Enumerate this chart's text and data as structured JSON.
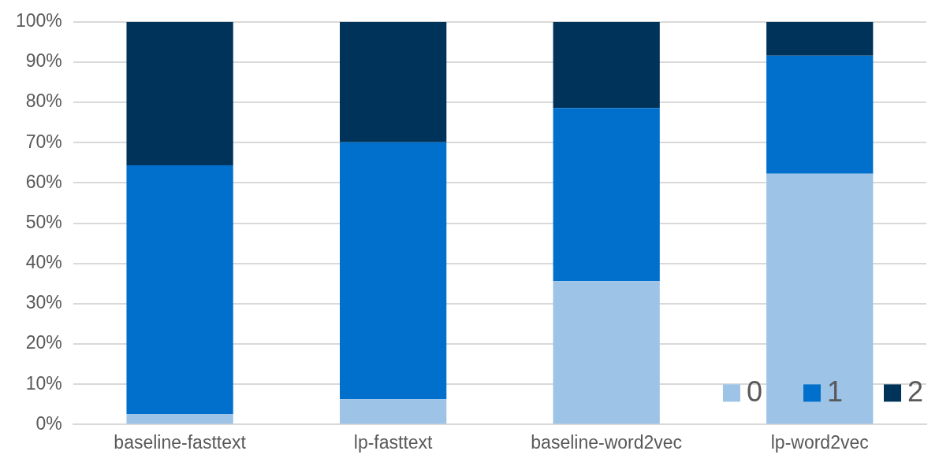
{
  "chart_data": {
    "type": "bar",
    "stacked": true,
    "categories": [
      "baseline-fasttext",
      "lp-fasttext",
      "baseline-word2vec",
      "lp-word2vec"
    ],
    "series": [
      {
        "name": "0",
        "color": "#9dc3e6",
        "values": [
          2.6,
          6.3,
          35.6,
          62.3
        ]
      },
      {
        "name": "1",
        "color": "#0070cc",
        "values": [
          61.8,
          63.8,
          43.0,
          29.3
        ]
      },
      {
        "name": "2",
        "color": "#003359",
        "values": [
          35.6,
          29.9,
          21.4,
          8.4
        ]
      }
    ],
    "ylim": [
      0,
      100
    ],
    "yticks": [
      {
        "value": 0,
        "label": "0%"
      },
      {
        "value": 10,
        "label": "10%"
      },
      {
        "value": 20,
        "label": "20%"
      },
      {
        "value": 30,
        "label": "30%"
      },
      {
        "value": 40,
        "label": "40%"
      },
      {
        "value": 50,
        "label": "50%"
      },
      {
        "value": 60,
        "label": "60%"
      },
      {
        "value": 70,
        "label": "70%"
      },
      {
        "value": 80,
        "label": "80%"
      },
      {
        "value": 90,
        "label": "90%"
      },
      {
        "value": 100,
        "label": "100%"
      }
    ],
    "grid": "y",
    "legend": "bottom right"
  }
}
